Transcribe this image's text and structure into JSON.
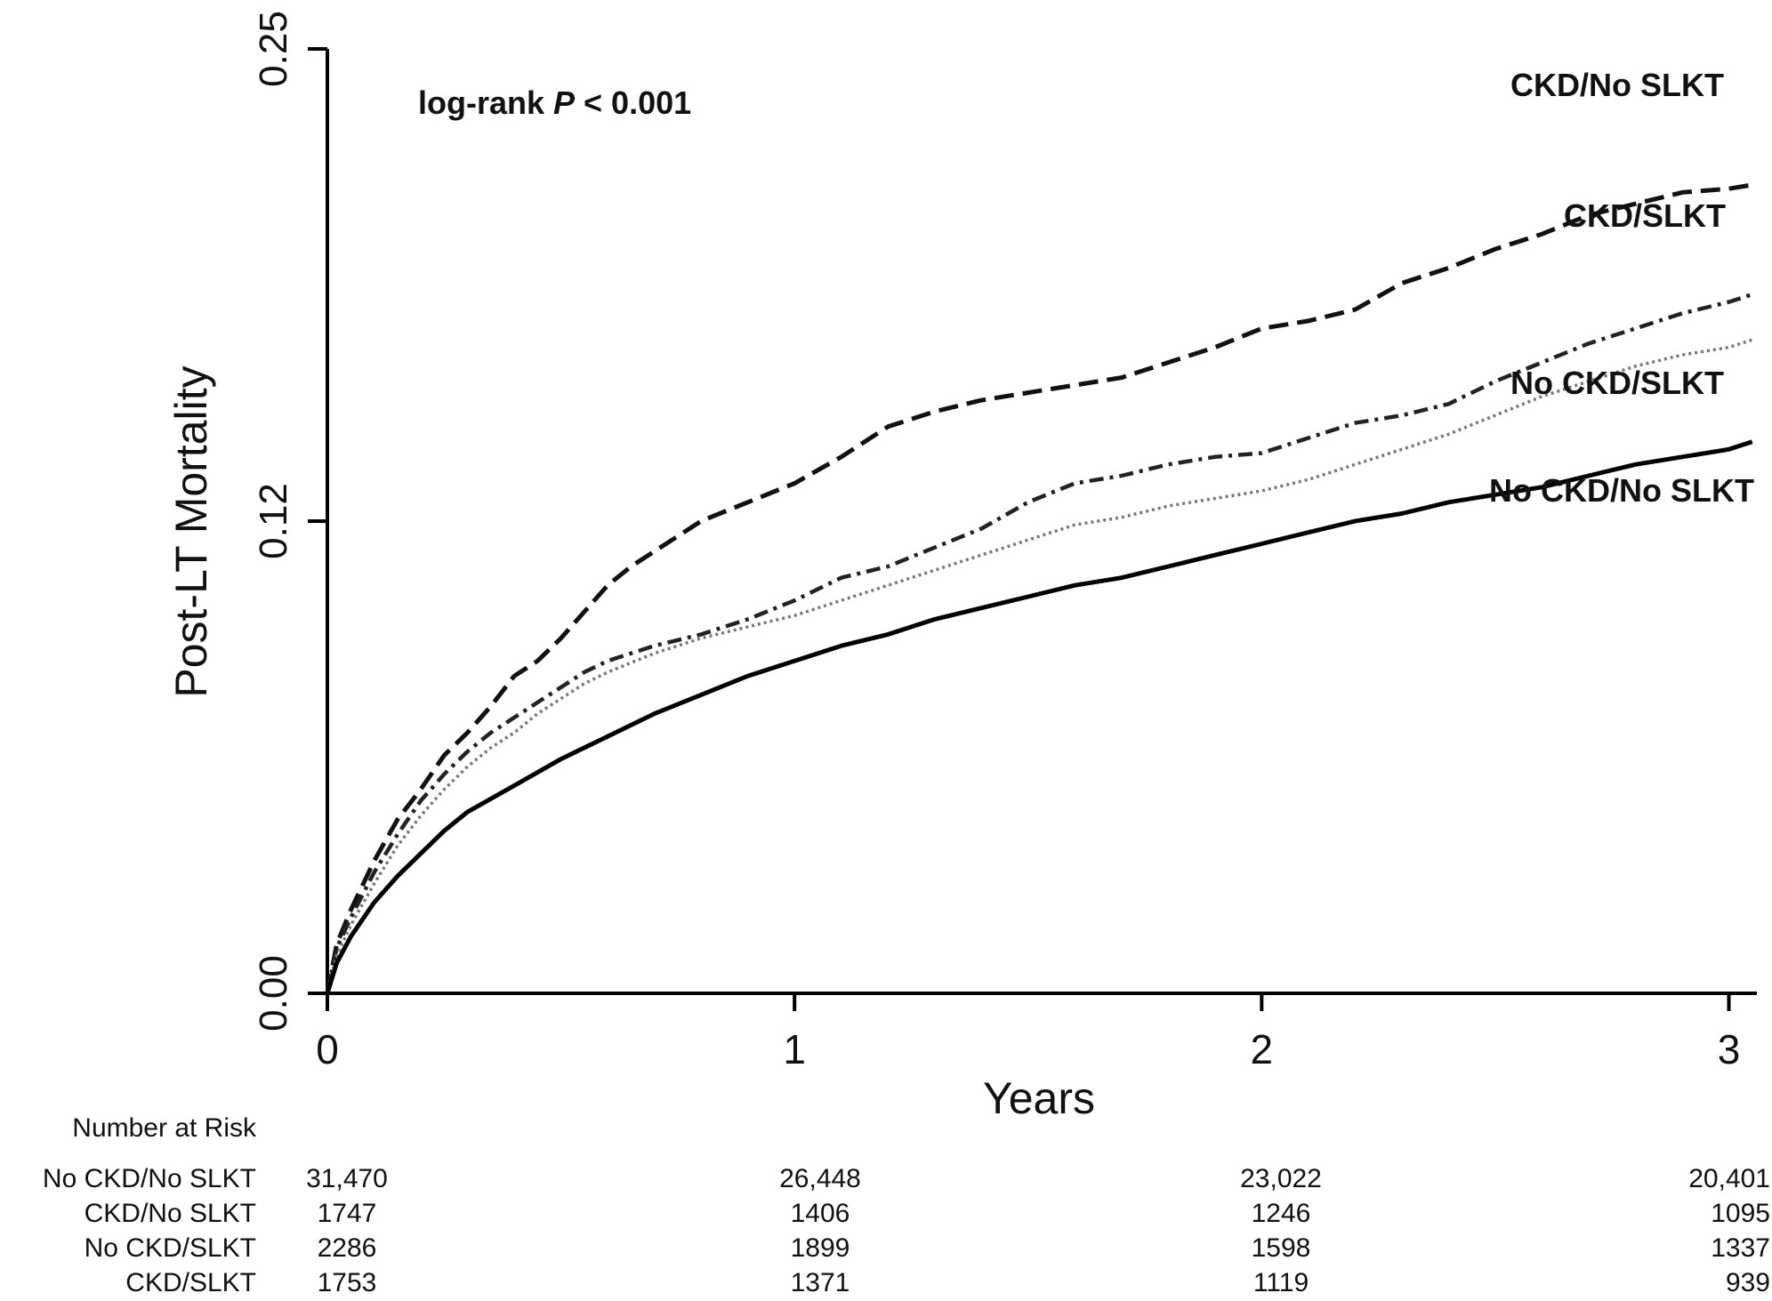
{
  "chart_data": {
    "type": "line",
    "title": "",
    "xlabel": "Years",
    "ylabel": "Post-LT Mortality",
    "xlim": [
      0,
      3.06
    ],
    "ylim": [
      0,
      0.25
    ],
    "x_ticks": [
      0,
      1,
      2,
      3
    ],
    "x_tick_labels": [
      "0",
      "1",
      "2",
      "3"
    ],
    "y_ticks": [
      0,
      0.125,
      0.25
    ],
    "y_tick_labels": [
      "0.00",
      "0.12",
      "0.25"
    ],
    "grid": false,
    "annotation": {
      "prefix": "log-rank ",
      "italic": "P",
      "suffix": " < 0.001"
    },
    "series": [
      {
        "name": "CKD/No SLKT",
        "dash": "dashed",
        "x": [
          0,
          0.02,
          0.05,
          0.1,
          0.15,
          0.2,
          0.25,
          0.3,
          0.35,
          0.4,
          0.45,
          0.5,
          0.55,
          0.6,
          0.65,
          0.7,
          0.75,
          0.8,
          0.9,
          1.0,
          1.1,
          1.2,
          1.3,
          1.4,
          1.5,
          1.6,
          1.7,
          1.8,
          1.9,
          2.0,
          2.1,
          2.2,
          2.3,
          2.4,
          2.5,
          2.6,
          2.7,
          2.8,
          2.9,
          3.0,
          3.05
        ],
        "y": [
          0,
          0.013,
          0.022,
          0.035,
          0.046,
          0.054,
          0.063,
          0.069,
          0.076,
          0.084,
          0.088,
          0.094,
          0.101,
          0.108,
          0.113,
          0.117,
          0.121,
          0.125,
          0.13,
          0.135,
          0.142,
          0.15,
          0.154,
          0.157,
          0.159,
          0.161,
          0.163,
          0.167,
          0.171,
          0.176,
          0.178,
          0.181,
          0.188,
          0.192,
          0.197,
          0.201,
          0.206,
          0.209,
          0.212,
          0.213,
          0.214
        ]
      },
      {
        "name": "CKD/SLKT",
        "dash": "dashdot",
        "x": [
          0,
          0.02,
          0.05,
          0.1,
          0.15,
          0.2,
          0.25,
          0.3,
          0.35,
          0.4,
          0.45,
          0.5,
          0.55,
          0.6,
          0.7,
          0.8,
          0.9,
          1.0,
          1.1,
          1.2,
          1.3,
          1.4,
          1.5,
          1.6,
          1.7,
          1.8,
          1.9,
          2.0,
          2.1,
          2.2,
          2.3,
          2.4,
          2.5,
          2.6,
          2.7,
          2.8,
          2.9,
          3.0,
          3.05
        ],
        "y": [
          0,
          0.012,
          0.02,
          0.032,
          0.042,
          0.051,
          0.058,
          0.064,
          0.069,
          0.073,
          0.077,
          0.081,
          0.085,
          0.088,
          0.092,
          0.095,
          0.099,
          0.104,
          0.11,
          0.113,
          0.118,
          0.123,
          0.13,
          0.135,
          0.137,
          0.14,
          0.142,
          0.143,
          0.147,
          0.151,
          0.153,
          0.156,
          0.162,
          0.167,
          0.172,
          0.176,
          0.18,
          0.183,
          0.185
        ]
      },
      {
        "name": "No CKD/SLKT",
        "dash": "dotted",
        "x": [
          0,
          0.02,
          0.05,
          0.1,
          0.15,
          0.2,
          0.25,
          0.3,
          0.35,
          0.4,
          0.45,
          0.5,
          0.55,
          0.6,
          0.7,
          0.8,
          0.9,
          1.0,
          1.1,
          1.2,
          1.3,
          1.4,
          1.5,
          1.6,
          1.7,
          1.8,
          1.9,
          2.0,
          2.1,
          2.2,
          2.3,
          2.4,
          2.5,
          2.6,
          2.7,
          2.8,
          2.9,
          3.0,
          3.05
        ],
        "y": [
          0,
          0.01,
          0.018,
          0.029,
          0.039,
          0.047,
          0.054,
          0.06,
          0.065,
          0.069,
          0.074,
          0.078,
          0.082,
          0.085,
          0.09,
          0.094,
          0.097,
          0.1,
          0.104,
          0.108,
          0.112,
          0.116,
          0.12,
          0.124,
          0.126,
          0.129,
          0.131,
          0.133,
          0.136,
          0.14,
          0.144,
          0.148,
          0.153,
          0.158,
          0.162,
          0.166,
          0.169,
          0.171,
          0.173
        ]
      },
      {
        "name": "No CKD/No SLKT",
        "dash": "solid",
        "x": [
          0,
          0.02,
          0.05,
          0.1,
          0.15,
          0.2,
          0.25,
          0.3,
          0.4,
          0.5,
          0.6,
          0.7,
          0.8,
          0.9,
          1.0,
          1.1,
          1.2,
          1.3,
          1.4,
          1.5,
          1.6,
          1.7,
          1.8,
          1.9,
          2.0,
          2.1,
          2.2,
          2.3,
          2.4,
          2.5,
          2.6,
          2.7,
          2.8,
          2.9,
          3.0,
          3.05
        ],
        "y": [
          0,
          0.008,
          0.015,
          0.024,
          0.031,
          0.037,
          0.043,
          0.048,
          0.055,
          0.062,
          0.068,
          0.074,
          0.079,
          0.084,
          0.088,
          0.092,
          0.095,
          0.099,
          0.102,
          0.105,
          0.108,
          0.11,
          0.113,
          0.116,
          0.119,
          0.122,
          0.125,
          0.127,
          0.13,
          0.132,
          0.134,
          0.137,
          0.14,
          0.142,
          0.144,
          0.146
        ]
      }
    ],
    "number_at_risk": {
      "title": "Number at Risk",
      "times": [
        0,
        1,
        2,
        3
      ],
      "rows": [
        {
          "label": "No CKD/No SLKT",
          "values": [
            "31,470",
            "26,448",
            "23,022",
            "20,401"
          ]
        },
        {
          "label": "CKD/No SLKT",
          "values": [
            "1747",
            "1406",
            "1246",
            "1095"
          ]
        },
        {
          "label": "No CKD/SLKT",
          "values": [
            "2286",
            "1899",
            "1598",
            "1337"
          ]
        },
        {
          "label": "CKD/SLKT",
          "values": [
            "1753",
            "1371",
            "1119",
            "939"
          ]
        }
      ]
    }
  }
}
